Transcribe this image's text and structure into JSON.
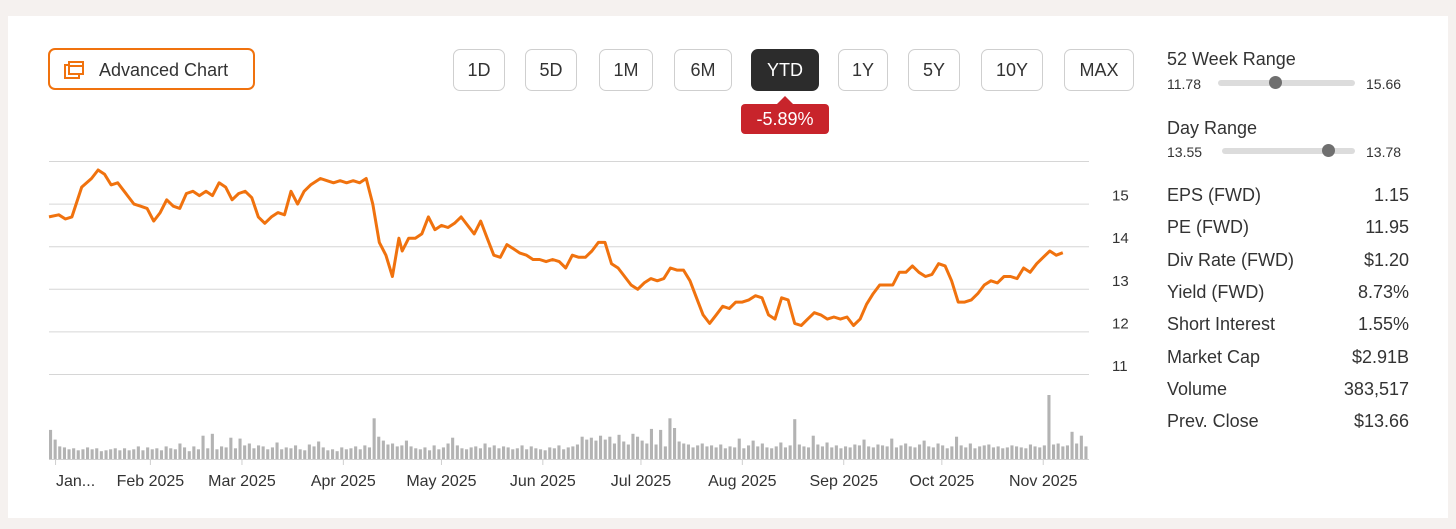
{
  "advanced_chart_button": {
    "label": "Advanced Chart",
    "icon": "chart-window-icon"
  },
  "periods": [
    {
      "label": "1D"
    },
    {
      "label": "5D"
    },
    {
      "label": "1M"
    },
    {
      "label": "6M"
    },
    {
      "label": "YTD",
      "active": true
    },
    {
      "label": "1Y"
    },
    {
      "label": "5Y"
    },
    {
      "label": "10Y"
    },
    {
      "label": "MAX"
    }
  ],
  "change_badge": {
    "value": "-5.89%",
    "color": "#c8242b"
  },
  "ranges": {
    "week52": {
      "title": "52 Week Range",
      "low": "11.78",
      "high": "15.66",
      "position": 0.42
    },
    "day": {
      "title": "Day Range",
      "low": "13.55",
      "high": "13.78",
      "position": 0.8
    }
  },
  "stats": [
    {
      "label": "EPS (FWD)",
      "value": "1.15"
    },
    {
      "label": "PE (FWD)",
      "value": "11.95"
    },
    {
      "label": "Div Rate (FWD)",
      "value": "$1.20"
    },
    {
      "label": "Yield (FWD)",
      "value": "8.73%"
    },
    {
      "label": "Short Interest",
      "value": "1.55%"
    },
    {
      "label": "Market Cap",
      "value": "$2.91B"
    },
    {
      "label": "Volume",
      "value": "383,517"
    },
    {
      "label": "Prev. Close",
      "value": "$13.66"
    }
  ],
  "chart_data": {
    "type": "line",
    "line_color": "#f0720e",
    "volume_color": "#b3b3b3",
    "grid": true,
    "ylim": [
      10.8,
      15.8
    ],
    "y_ticks": [
      15,
      14,
      13,
      12,
      11
    ],
    "x_tick_labels": [
      "Jan...",
      "Feb 2025",
      "Mar 2025",
      "Apr 2025",
      "May 2025",
      "Jun 2025",
      "Jul 2025",
      "Aug 2025",
      "Sep 2025",
      "Oct 2025",
      "Nov 2025"
    ],
    "x_tick_days": [
      2,
      31,
      59,
      90,
      120,
      151,
      181,
      212,
      243,
      273,
      304
    ],
    "x_range_days": [
      0,
      318
    ],
    "series": [
      {
        "values": [
          [
            0,
            14.5
          ],
          [
            3,
            14.55
          ],
          [
            5,
            14.45
          ],
          [
            7,
            14.5
          ],
          [
            10,
            15.2
          ],
          [
            13,
            15.4
          ],
          [
            15,
            15.6
          ],
          [
            17,
            15.5
          ],
          [
            19,
            15.25
          ],
          [
            21,
            15.3
          ],
          [
            24,
            15.0
          ],
          [
            26,
            14.8
          ],
          [
            28,
            14.75
          ],
          [
            30,
            14.7
          ],
          [
            32,
            14.4
          ],
          [
            34,
            14.6
          ],
          [
            36,
            14.9
          ],
          [
            38,
            14.75
          ],
          [
            40,
            14.7
          ],
          [
            42,
            15.05
          ],
          [
            44,
            15.1
          ],
          [
            46,
            15.0
          ],
          [
            48,
            15.1
          ],
          [
            50,
            15.0
          ],
          [
            52,
            15.3
          ],
          [
            54,
            15.2
          ],
          [
            56,
            14.9
          ],
          [
            58,
            15.05
          ],
          [
            60,
            15.1
          ],
          [
            62,
            14.95
          ],
          [
            64,
            14.5
          ],
          [
            66,
            14.35
          ],
          [
            68,
            14.5
          ],
          [
            70,
            14.6
          ],
          [
            72,
            14.55
          ],
          [
            74,
            15.1
          ],
          [
            76,
            14.8
          ],
          [
            78,
            15.1
          ],
          [
            80,
            15.25
          ],
          [
            83,
            15.4
          ],
          [
            85,
            15.35
          ],
          [
            87,
            15.3
          ],
          [
            89,
            15.35
          ],
          [
            91,
            15.3
          ],
          [
            93,
            15.35
          ],
          [
            95,
            15.3
          ],
          [
            97,
            15.4
          ],
          [
            99,
            14.8
          ],
          [
            101,
            13.9
          ],
          [
            103,
            13.6
          ],
          [
            105,
            13.1
          ],
          [
            107,
            14.0
          ],
          [
            108,
            13.7
          ],
          [
            110,
            14.0
          ],
          [
            112,
            14.0
          ],
          [
            114,
            14.1
          ],
          [
            116,
            14.5
          ],
          [
            118,
            14.2
          ],
          [
            120,
            14.3
          ],
          [
            122,
            14.25
          ],
          [
            124,
            14.35
          ],
          [
            126,
            14.5
          ],
          [
            128,
            14.3
          ],
          [
            130,
            14.1
          ],
          [
            132,
            14.4
          ],
          [
            134,
            14.0
          ],
          [
            136,
            13.6
          ],
          [
            138,
            13.55
          ],
          [
            140,
            13.85
          ],
          [
            142,
            13.75
          ],
          [
            144,
            13.65
          ],
          [
            146,
            13.6
          ],
          [
            148,
            13.5
          ],
          [
            150,
            13.5
          ],
          [
            152,
            13.45
          ],
          [
            154,
            13.5
          ],
          [
            156,
            13.45
          ],
          [
            158,
            13.3
          ],
          [
            160,
            13.6
          ],
          [
            162,
            13.55
          ],
          [
            164,
            13.55
          ],
          [
            166,
            13.7
          ],
          [
            168,
            13.9
          ],
          [
            170,
            13.9
          ],
          [
            172,
            13.4
          ],
          [
            174,
            13.3
          ],
          [
            176,
            13.1
          ],
          [
            178,
            12.9
          ],
          [
            180,
            12.8
          ],
          [
            182,
            12.95
          ],
          [
            184,
            13.05
          ],
          [
            186,
            13.0
          ],
          [
            188,
            13.05
          ],
          [
            190,
            13.3
          ],
          [
            192,
            13.25
          ],
          [
            194,
            13.25
          ],
          [
            196,
            13.0
          ],
          [
            198,
            12.6
          ],
          [
            200,
            12.2
          ],
          [
            202,
            12.0
          ],
          [
            204,
            12.2
          ],
          [
            206,
            12.4
          ],
          [
            208,
            12.35
          ],
          [
            210,
            12.5
          ],
          [
            212,
            12.5
          ],
          [
            214,
            12.55
          ],
          [
            216,
            12.65
          ],
          [
            218,
            12.6
          ],
          [
            220,
            12.2
          ],
          [
            222,
            12.1
          ],
          [
            224,
            12.6
          ],
          [
            226,
            12.55
          ],
          [
            228,
            12.0
          ],
          [
            230,
            11.95
          ],
          [
            232,
            12.1
          ],
          [
            234,
            12.25
          ],
          [
            236,
            12.2
          ],
          [
            238,
            12.1
          ],
          [
            240,
            12.15
          ],
          [
            242,
            12.1
          ],
          [
            244,
            12.15
          ],
          [
            246,
            11.95
          ],
          [
            248,
            12.1
          ],
          [
            250,
            12.45
          ],
          [
            252,
            12.7
          ],
          [
            254,
            12.9
          ],
          [
            256,
            12.9
          ],
          [
            258,
            12.9
          ],
          [
            260,
            13.2
          ],
          [
            262,
            13.2
          ],
          [
            264,
            13.35
          ],
          [
            266,
            13.2
          ],
          [
            268,
            13.1
          ],
          [
            270,
            13.15
          ],
          [
            272,
            13.4
          ],
          [
            274,
            13.35
          ],
          [
            276,
            13.0
          ],
          [
            278,
            12.5
          ],
          [
            280,
            12.5
          ],
          [
            282,
            12.55
          ],
          [
            284,
            12.7
          ],
          [
            286,
            12.9
          ],
          [
            288,
            13.0
          ],
          [
            290,
            12.95
          ],
          [
            292,
            13.1
          ],
          [
            294,
            13.1
          ],
          [
            296,
            13.05
          ],
          [
            298,
            13.3
          ],
          [
            300,
            13.2
          ],
          [
            302,
            13.4
          ],
          [
            304,
            13.55
          ],
          [
            306,
            13.7
          ],
          [
            308,
            13.6
          ],
          [
            310,
            13.66
          ]
        ]
      }
    ],
    "volume": [
      3,
      2,
      1.3,
      1.2,
      1,
      1.1,
      0.9,
      1,
      1.2,
      1,
      1.1,
      0.8,
      0.9,
      1,
      1.1,
      0.9,
      1.1,
      0.9,
      1,
      1.3,
      0.9,
      1.2,
      1,
      1.1,
      0.9,
      1.3,
      1.1,
      1,
      1.6,
      1.2,
      0.8,
      1.3,
      1,
      2.4,
      1.1,
      2.6,
      1,
      1.3,
      1.2,
      2.2,
      1.1,
      2.1,
      1.4,
      1.6,
      1.1,
      1.4,
      1.3,
      1,
      1.2,
      1.7,
      1,
      1.2,
      1.1,
      1.4,
      1,
      0.9,
      1.5,
      1.3,
      1.8,
      1.2,
      0.9,
      1,
      0.8,
      1.2,
      1,
      1.1,
      1.3,
      1,
      1.4,
      1.2,
      4.2,
      2.3,
      1.9,
      1.5,
      1.6,
      1.3,
      1.4,
      1.9,
      1.3,
      1.1,
      1,
      1.2,
      0.9,
      1.4,
      1,
      1.2,
      1.6,
      2.2,
      1.4,
      1.1,
      1,
      1.2,
      1.3,
      1.1,
      1.6,
      1.2,
      1.4,
      1.1,
      1.3,
      1.2,
      1,
      1.1,
      1.4,
      1,
      1.3,
      1.1,
      1,
      0.9,
      1.2,
      1.1,
      1.4,
      1,
      1.2,
      1.3,
      1.5,
      2.3,
      2,
      2.2,
      1.9,
      2.4,
      2,
      2.3,
      1.6,
      2.5,
      1.8,
      1.5,
      2.6,
      2.3,
      1.9,
      1.6,
      3.1,
      1.5,
      3,
      1.3,
      4.2,
      3.2,
      1.8,
      1.6,
      1.5,
      1.2,
      1.4,
      1.6,
      1.3,
      1.4,
      1.2,
      1.5,
      1.1,
      1.3,
      1.2,
      2.1,
      1.1,
      1.4,
      1.9,
      1.3,
      1.6,
      1.2,
      1.1,
      1.3,
      1.7,
      1.2,
      1.4,
      4.1,
      1.5,
      1.3,
      1.2,
      2.4,
      1.5,
      1.3,
      1.7,
      1.2,
      1.4,
      1.1,
      1.3,
      1.2,
      1.5,
      1.4,
      2,
      1.3,
      1.2,
      1.5,
      1.4,
      1.3,
      2.1,
      1.2,
      1.4,
      1.6,
      1.3,
      1.2,
      1.5,
      1.9,
      1.3,
      1.2,
      1.6,
      1.4,
      1.1,
      1.3,
      2.3,
      1.4,
      1.2,
      1.6,
      1.1,
      1.3,
      1.4,
      1.5,
      1.2,
      1.3,
      1.1,
      1.2,
      1.4,
      1.3,
      1.2,
      1.1,
      1.5,
      1.3,
      1.2,
      1.4,
      6.6,
      1.5,
      1.6,
      1.3,
      1.4,
      2.8,
      1.6,
      2.4,
      1.3
    ]
  }
}
